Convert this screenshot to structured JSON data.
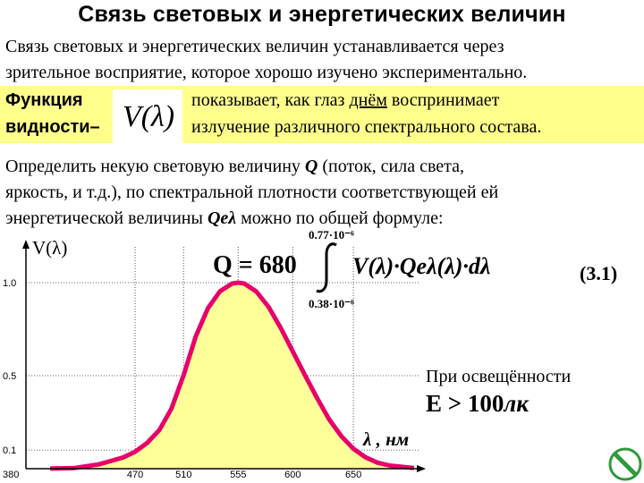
{
  "title": "Связь световых и энергетических величин",
  "intro": {
    "line1": "Связь световых и энергетических величин устанавливается через",
    "line2": "зрительное восприятие, которое хорошо изучено экспериментально."
  },
  "highlight": {
    "label1": "Функция",
    "label2": "видности–",
    "symbol": "V(λ)",
    "text1_pre": "показывает, как глаз ",
    "text1_underlined": "днём",
    "text1_post": " воспринимает",
    "text2": "излучение различного спектрального состава.",
    "background_color": "#ffff8c"
  },
  "paragraph": {
    "line1_pre": "Определить некую световую величину ",
    "line1_var": "Q",
    "line1_post": " (поток, сила света,",
    "line2": "яркость, и т.д.), по спектральной плотности соответствующей ей",
    "line3_pre": "энергетической величины ",
    "line3_var": "Qeλ",
    "line3_post": " можно по общей формуле:"
  },
  "formula": {
    "lhs": "Q = 680",
    "upper_limit": "0.77·10⁻⁶",
    "lower_limit": "0.38·10⁻⁶",
    "integrand": "V(λ)·Qeλ(λ)·dλ",
    "number": "(3.1)"
  },
  "illumination": {
    "text": "При освещённости",
    "condition": "E > 100",
    "unit": "лк"
  },
  "chart_data": {
    "type": "area",
    "ylabel": "V(λ)",
    "xlabel": "λ , нм",
    "x_ticks": [
      "380",
      "470",
      "510",
      "555",
      "600",
      "650"
    ],
    "y_ticks": [
      "0.1",
      "0.5",
      "1.0"
    ],
    "xlim": [
      380,
      700
    ],
    "ylim": [
      0,
      1.1
    ],
    "x": [
      400,
      420,
      440,
      460,
      470,
      480,
      490,
      500,
      510,
      520,
      530,
      540,
      550,
      555,
      560,
      570,
      580,
      590,
      600,
      610,
      620,
      630,
      640,
      650,
      660,
      670,
      680,
      700
    ],
    "values": [
      0.0004,
      0.004,
      0.023,
      0.06,
      0.091,
      0.139,
      0.208,
      0.323,
      0.503,
      0.71,
      0.862,
      0.954,
      0.995,
      1.0,
      0.995,
      0.952,
      0.87,
      0.757,
      0.631,
      0.503,
      0.381,
      0.265,
      0.175,
      0.107,
      0.061,
      0.032,
      0.017,
      0.004
    ],
    "fill_color": "#ffff99",
    "line_color": "#e8006a",
    "grid": "dotted"
  },
  "footer_icon": "no-entry-icon"
}
